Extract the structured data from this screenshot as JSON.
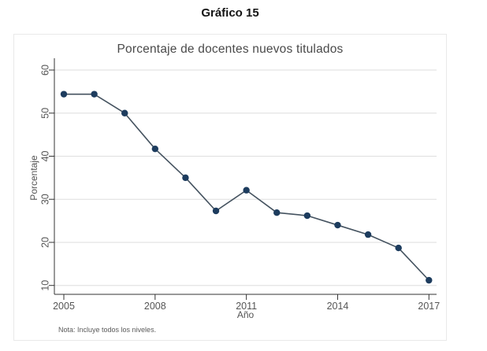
{
  "page": {
    "heading": "Gráfico 15"
  },
  "chart_data": {
    "type": "line",
    "title": "Porcentaje de docentes nuevos titulados",
    "xlabel": "Año",
    "ylabel": "Porcentaje",
    "note": "Nota: Incluye todos los niveles.",
    "x": [
      2005,
      2006,
      2007,
      2008,
      2009,
      2010,
      2011,
      2012,
      2013,
      2014,
      2015,
      2016,
      2017
    ],
    "values": [
      54.4,
      54.4,
      50.0,
      41.7,
      35.0,
      27.3,
      32.1,
      26.9,
      26.2,
      24.0,
      21.8,
      18.7,
      11.2
    ],
    "x_ticks": [
      2005,
      2008,
      2011,
      2014,
      2017
    ],
    "y_ticks": [
      10,
      20,
      30,
      40,
      50,
      60
    ],
    "xlim": [
      2005,
      2017
    ],
    "ylim": [
      10,
      60
    ],
    "grid": "horizontal",
    "legend": "none",
    "colors": {
      "marker": "#1d3c5e",
      "line": "#44525f",
      "grid": "#dedede",
      "axis": "#333333",
      "tick_text": "#555555"
    }
  }
}
